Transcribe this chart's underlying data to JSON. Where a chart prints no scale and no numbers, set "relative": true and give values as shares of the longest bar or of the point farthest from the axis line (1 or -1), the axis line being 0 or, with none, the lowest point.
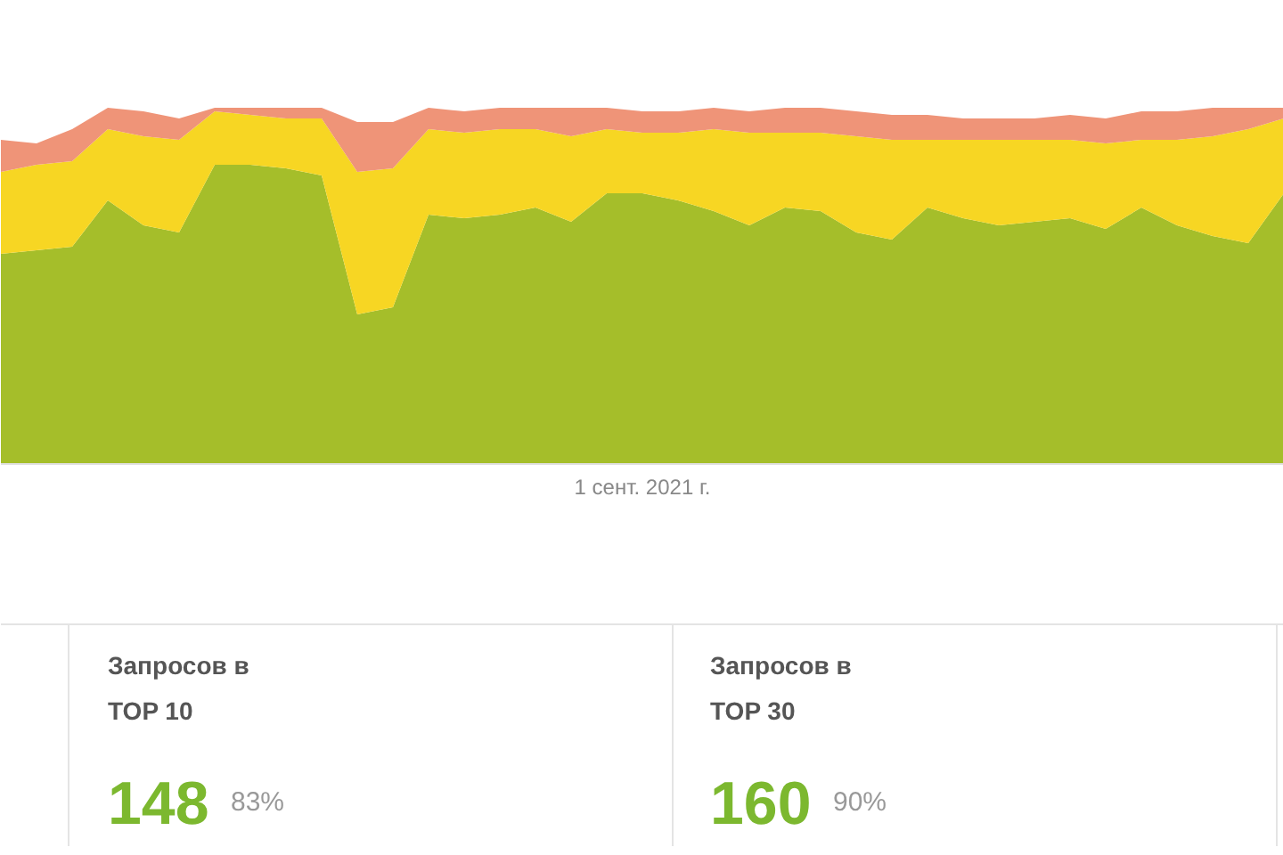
{
  "chart_data": [
    {
      "type": "area",
      "stacked": true,
      "relative": true,
      "categories": [
        null,
        null,
        null,
        null,
        null,
        null,
        null,
        null,
        null,
        null,
        null,
        null,
        null,
        null,
        null,
        null,
        null,
        null,
        null,
        null,
        null,
        null,
        null,
        null,
        null,
        null,
        null,
        null,
        null,
        null,
        null,
        null,
        null,
        null,
        null,
        null,
        null
      ],
      "series": [
        {
          "color": "#a5be2a",
          "values": [
            0.59,
            0.6,
            0.61,
            0.74,
            0.67,
            0.65,
            0.84,
            0.84,
            0.83,
            0.81,
            0.42,
            0.44,
            0.7,
            0.69,
            0.7,
            0.72,
            0.68,
            0.76,
            0.76,
            0.74,
            0.71,
            0.67,
            0.72,
            0.71,
            0.65,
            0.63,
            0.72,
            0.69,
            0.67,
            0.68,
            0.69,
            0.66,
            0.72,
            0.67,
            0.64,
            0.62,
            0.76
          ]
        },
        {
          "color": "#f7d623",
          "values": [
            0.23,
            0.24,
            0.24,
            0.2,
            0.25,
            0.26,
            0.15,
            0.14,
            0.14,
            0.16,
            0.4,
            0.39,
            0.24,
            0.24,
            0.24,
            0.22,
            0.24,
            0.18,
            0.17,
            0.19,
            0.23,
            0.26,
            0.21,
            0.22,
            0.27,
            0.28,
            0.19,
            0.22,
            0.24,
            0.23,
            0.22,
            0.24,
            0.19,
            0.24,
            0.28,
            0.32,
            0.21
          ]
        },
        {
          "color": "#ef9478",
          "values": [
            0.09,
            0.06,
            0.09,
            0.06,
            0.07,
            0.06,
            0.01,
            0.02,
            0.03,
            0.03,
            0.14,
            0.13,
            0.06,
            0.06,
            0.06,
            0.06,
            0.08,
            0.06,
            0.06,
            0.06,
            0.06,
            0.06,
            0.07,
            0.07,
            0.07,
            0.07,
            0.07,
            0.06,
            0.06,
            0.06,
            0.07,
            0.07,
            0.08,
            0.08,
            0.08,
            0.06,
            0.03
          ]
        }
      ],
      "annotations": [
        "1 сент. 2021 г."
      ],
      "grid": false
    },
    {
      "type": "other",
      "annotations": [
        "Запросов в\nTOP 10",
        "148",
        "83%",
        "Запросов в\nTOP 30",
        "160",
        "90%"
      ]
    }
  ]
}
